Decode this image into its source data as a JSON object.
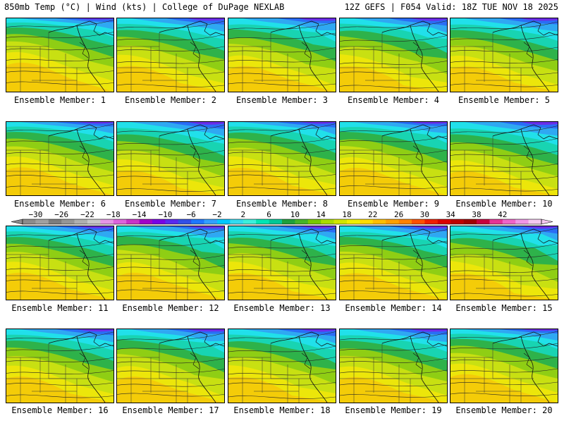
{
  "header": {
    "left": "850mb Temp (°C) | Wind (kts) | College of DuPage NEXLAB",
    "right": "12Z GEFS | F054 Valid: 18Z TUE NOV 18 2025"
  },
  "members": [
    {
      "label": "Ensemble Member: 1"
    },
    {
      "label": "Ensemble Member: 2"
    },
    {
      "label": "Ensemble Member: 3"
    },
    {
      "label": "Ensemble Member: 4"
    },
    {
      "label": "Ensemble Member: 5"
    },
    {
      "label": "Ensemble Member: 6"
    },
    {
      "label": "Ensemble Member: 7"
    },
    {
      "label": "Ensemble Member: 8"
    },
    {
      "label": "Ensemble Member: 9"
    },
    {
      "label": "Ensemble Member: 10"
    },
    {
      "label": "Ensemble Member: 11"
    },
    {
      "label": "Ensemble Member: 12"
    },
    {
      "label": "Ensemble Member: 13"
    },
    {
      "label": "Ensemble Member: 14"
    },
    {
      "label": "Ensemble Member: 15"
    },
    {
      "label": "Ensemble Member: 16"
    },
    {
      "label": "Ensemble Member: 17"
    },
    {
      "label": "Ensemble Member: 18"
    },
    {
      "label": "Ensemble Member: 19"
    },
    {
      "label": "Ensemble Member: 20"
    }
  ],
  "colorbar": {
    "ticks": [
      "-30",
      "-26",
      "-22",
      "-18",
      "-14",
      "-10",
      "-6",
      "-2",
      "2",
      "6",
      "10",
      "14",
      "18",
      "22",
      "26",
      "30",
      "34",
      "38",
      "42"
    ],
    "colors": [
      "#8c8c8c",
      "#a0a0a0",
      "#7d7d7d",
      "#969696",
      "#afafaf",
      "#c8c8c8",
      "#e696e6",
      "#dc64dc",
      "#c832c8",
      "#a000c8",
      "#7800e6",
      "#5a28f0",
      "#3250e6",
      "#1e78ff",
      "#32a0ff",
      "#00c8ff",
      "#32dcf0",
      "#3cf0dc",
      "#00e6b4",
      "#00c896",
      "#1ea03c",
      "#46b428",
      "#78c800",
      "#aadc00",
      "#d2e600",
      "#f0f000",
      "#ffdc00",
      "#ffbe00",
      "#ffa000",
      "#ff8200",
      "#ff5000",
      "#f01e00",
      "#dc0000",
      "#be0000",
      "#a00000",
      "#c8003c",
      "#e63296",
      "#f064c8",
      "#f096e6",
      "#f5c8f0"
    ]
  },
  "field_colors": {
    "purple": "#6a2ee8",
    "blue": "#2a6df5",
    "lightblue": "#2fa8f2",
    "cyan": "#21e0ea",
    "teal": "#18d4b2",
    "green": "#2eb24a",
    "lime": "#8fce14",
    "yellowgreen": "#c8e012",
    "yellow": "#ece60a",
    "gold": "#f4cc08"
  }
}
